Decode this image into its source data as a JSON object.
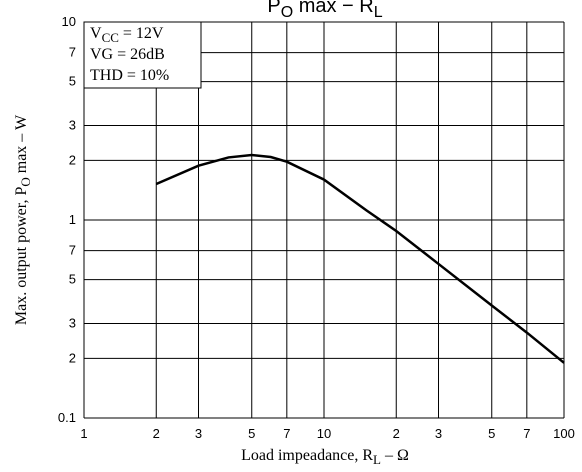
{
  "chart_data": {
    "type": "line",
    "title": [
      "P",
      "O",
      " max  −  R",
      "L"
    ],
    "x_label": [
      "Load impeadance, R",
      "L",
      "  –  Ω"
    ],
    "y_label": [
      "Max. output power, P",
      "O",
      " max  –  W"
    ],
    "annotations": [
      [
        "V",
        "CC",
        " = 12V"
      ],
      [
        "VG = 26dB"
      ],
      [
        "THD = 10%"
      ]
    ],
    "log_x": true,
    "log_y": true,
    "grid": true,
    "xlim": [
      1,
      100
    ],
    "ylim": [
      0.1,
      10
    ],
    "xticks": [
      1,
      2,
      3,
      5,
      7,
      10,
      {
        "value": 20,
        "label": "2"
      },
      {
        "value": 30,
        "label": "3"
      },
      {
        "value": 50,
        "label": "5"
      },
      {
        "value": 70,
        "label": "7"
      },
      100
    ],
    "yticks": [
      0.1,
      {
        "value": 0.2,
        "label": "2"
      },
      {
        "value": 0.3,
        "label": "3"
      },
      {
        "value": 0.5,
        "label": "5"
      },
      {
        "value": 0.7,
        "label": "7"
      },
      1,
      2,
      3,
      5,
      7,
      10
    ],
    "x": [
      2,
      3,
      4,
      5,
      6,
      7,
      10,
      15,
      20,
      30,
      50,
      70,
      100
    ],
    "series": [
      {
        "color": "#000000",
        "values": [
          1.52,
          1.88,
          2.07,
          2.13,
          2.08,
          1.97,
          1.6,
          1.12,
          0.88,
          0.6,
          0.37,
          0.27,
          0.19
        ]
      }
    ]
  }
}
